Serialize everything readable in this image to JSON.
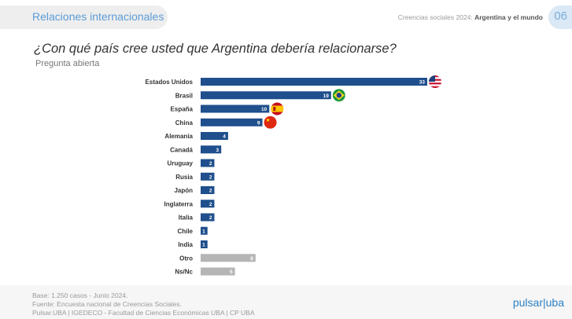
{
  "header": {
    "section_title": "Relaciones internacionales",
    "context_prefix": "Creencias sociales 2024: ",
    "context_bold": "Argentina y el mundo",
    "page_number": "06"
  },
  "question": "¿Con qué país cree usted que Argentina debería relacionarse?",
  "subtitle": "Pregunta abierta",
  "chart_data": {
    "type": "bar",
    "orientation": "horizontal",
    "categories": [
      "Estados Unidos",
      "Brasil",
      "España",
      "China",
      "Alemania",
      "Canadá",
      "Uruguay",
      "Rusia",
      "Japón",
      "Inglaterra",
      "Italia",
      "Chile",
      "India",
      "Otro",
      "Ns/Nc"
    ],
    "values": [
      33,
      19,
      10,
      9,
      4,
      3,
      2,
      2,
      2,
      2,
      2,
      1,
      1,
      8,
      5
    ],
    "bar_colors": [
      "#1f4f8c",
      "#1f4f8c",
      "#1f4f8c",
      "#1f4f8c",
      "#1f4f8c",
      "#1f4f8c",
      "#1f4f8c",
      "#1f4f8c",
      "#1f4f8c",
      "#1f4f8c",
      "#1f4f8c",
      "#1f4f8c",
      "#1f4f8c",
      "#b5b5b5",
      "#b5b5b5"
    ],
    "flags": [
      "us-flag-icon",
      "brazil-flag-icon",
      "spain-flag-icon",
      "china-flag-icon"
    ],
    "xlim": [
      0,
      33
    ]
  },
  "footer": {
    "base": "Base: 1.250 casos - Junio 2024.",
    "source": "Fuente: Encuesta nacional de Creencias Sociales.",
    "credits": "Pulsar.UBA | IGEDECO - Facultad de Ciencias Económicas UBA | CP UBA",
    "logo_left": "pulsar",
    "logo_right": "uba"
  }
}
